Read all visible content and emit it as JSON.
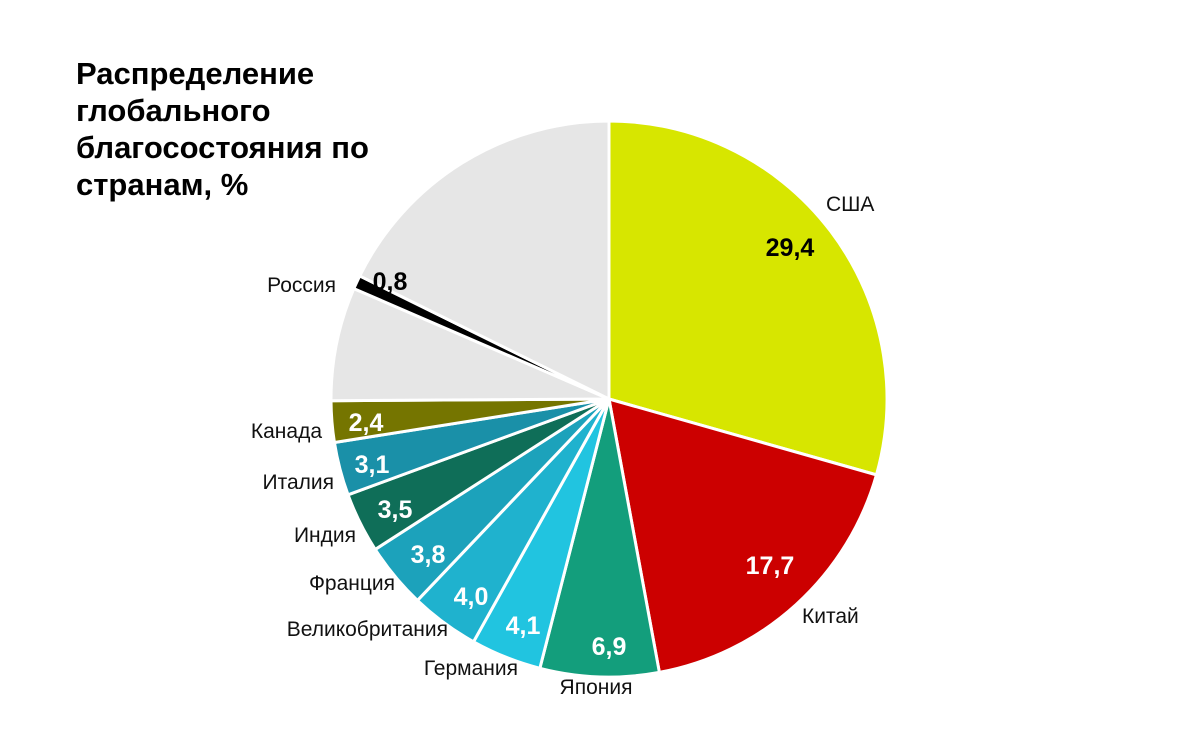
{
  "chart_data": {
    "type": "pie",
    "title": "Распределение глобального благосостояния по странам, %",
    "slices": [
      {
        "label": "США",
        "value_label": "29,4",
        "value": 29.4,
        "color": "#d7e600",
        "value_color": "#000000"
      },
      {
        "label": "Китай",
        "value_label": "17,7",
        "value": 17.7,
        "color": "#cc0000",
        "value_color": "#ffffff"
      },
      {
        "label": "Япония",
        "value_label": "6,9",
        "value": 6.9,
        "color": "#139e7c",
        "value_color": "#ffffff"
      },
      {
        "label": "Германия",
        "value_label": "4,1",
        "value": 4.1,
        "color": "#21c4e0",
        "value_color": "#ffffff"
      },
      {
        "label": "Великобритания",
        "value_label": "4,0",
        "value": 4.0,
        "color": "#1fb2ce",
        "value_color": "#ffffff"
      },
      {
        "label": "Франция",
        "value_label": "3,8",
        "value": 3.8,
        "color": "#1ca2bb",
        "value_color": "#ffffff"
      },
      {
        "label": "Индия",
        "value_label": "3,5",
        "value": 3.5,
        "color": "#0f6e58",
        "value_color": "#ffffff"
      },
      {
        "label": "Италия",
        "value_label": "3,1",
        "value": 3.1,
        "color": "#1a90a8",
        "value_color": "#ffffff"
      },
      {
        "label": "Канада",
        "value_label": "2,4",
        "value": 2.4,
        "color": "#757500",
        "value_color": "#ffffff"
      },
      {
        "label": "",
        "value_label": "",
        "value": 6.6,
        "color": "#e6e6e6",
        "value_color": "#000000"
      },
      {
        "label": "Россия",
        "value_label": "0,8",
        "value": 0.8,
        "color": "#000000",
        "value_color": "#000000"
      },
      {
        "label": "",
        "value_label": "",
        "value": 17.7,
        "color": "#e6e6e6",
        "value_color": "#000000"
      }
    ]
  }
}
